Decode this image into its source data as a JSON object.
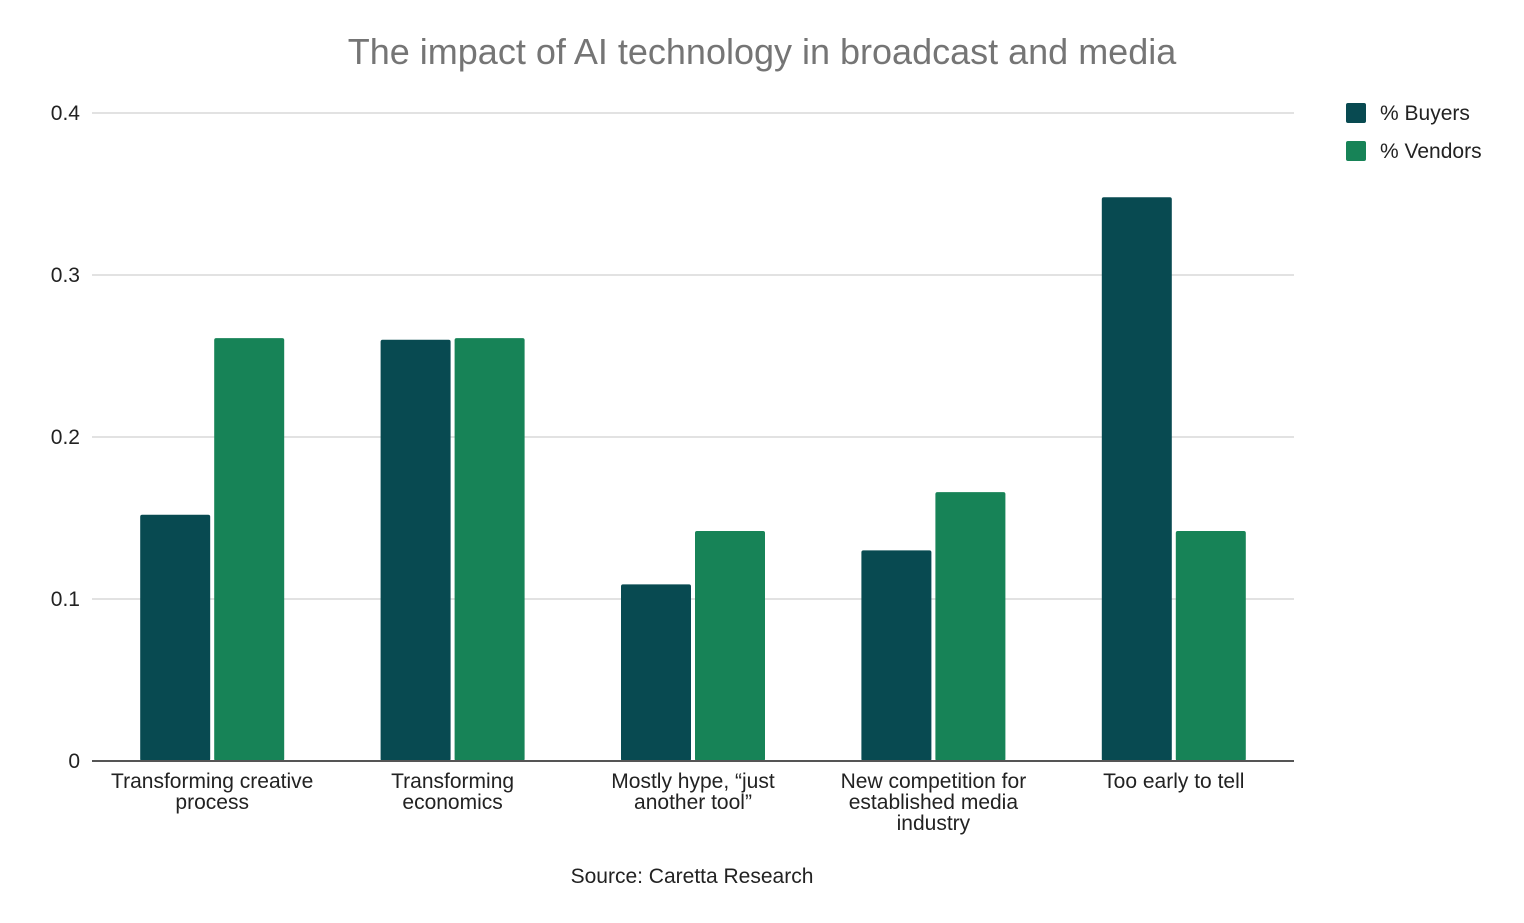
{
  "chart_data": {
    "type": "bar",
    "title": "The impact of AI technology in broadcast and media",
    "source": "Source: Caretta Research",
    "categories": [
      [
        "Transforming creative",
        "process"
      ],
      [
        "Transforming",
        "economics"
      ],
      [
        "Mostly hype, “just",
        "another tool”"
      ],
      [
        "New competition for",
        "established media",
        "industry"
      ],
      [
        "Too early to tell"
      ]
    ],
    "series": [
      {
        "name": "% Buyers",
        "color": "#084a51",
        "values": [
          0.152,
          0.26,
          0.109,
          0.13,
          0.348
        ]
      },
      {
        "name": "% Vendors",
        "color": "#178357",
        "values": [
          0.261,
          0.261,
          0.142,
          0.166,
          0.142
        ]
      }
    ],
    "ylim": [
      0,
      0.4
    ],
    "yticks": [
      "0",
      "0.1",
      "0.2",
      "0.3",
      "0.4"
    ],
    "grid": true,
    "legend_position": "top-right",
    "xlabel": "",
    "ylabel": ""
  }
}
